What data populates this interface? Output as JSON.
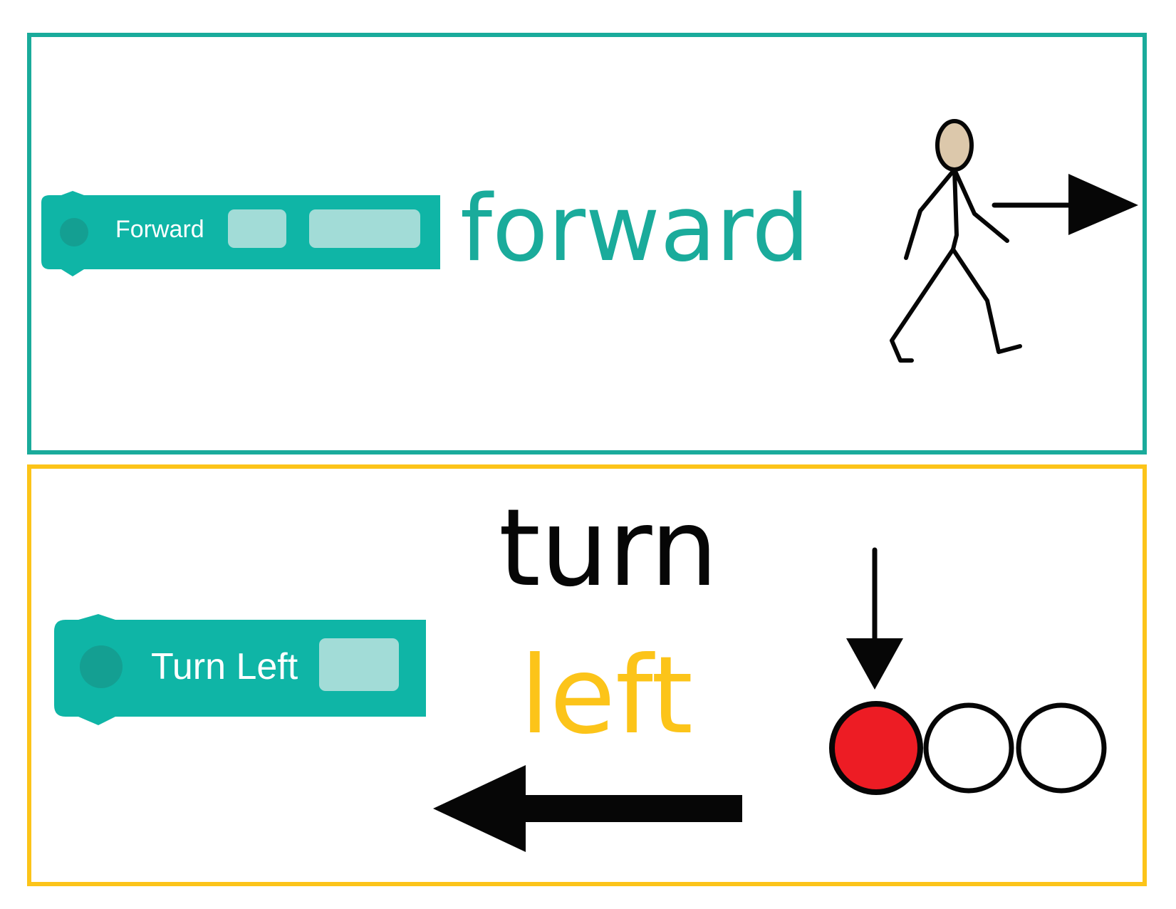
{
  "colors": {
    "teal": "#1aab9b",
    "block_teal": "#0fb5a6",
    "block_dot": "#149f92",
    "slot": "#a2dcd7",
    "yellow": "#fcc419",
    "black": "#060606",
    "red": "#ed1c24",
    "skin": "#dcc8ab"
  },
  "cards": [
    {
      "block": {
        "label": "Forward",
        "slots": 2
      },
      "words": [
        "forward"
      ],
      "icons": [
        "walking-person-icon",
        "arrow-right-icon"
      ]
    },
    {
      "block": {
        "label": "Turn Left",
        "slots": 1
      },
      "words": [
        "turn",
        "left"
      ],
      "icons": [
        "arrow-down-icon",
        "position-circles-icon",
        "arrow-left-icon"
      ]
    }
  ]
}
